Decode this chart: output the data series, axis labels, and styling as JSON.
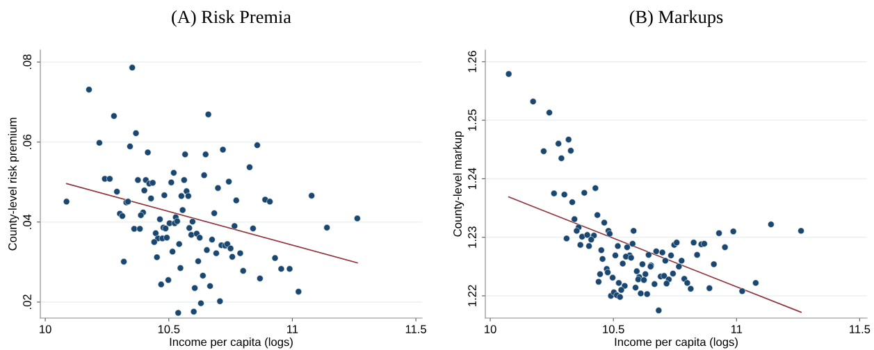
{
  "chart_data": [
    {
      "type": "scatter",
      "title": "(A) Risk Premia",
      "xlabel": "Income per capita (logs)",
      "ylabel": "County-level risk premium",
      "xlim": [
        9.98,
        11.525
      ],
      "ylim": [
        0.016,
        0.083
      ],
      "xticks": [
        10,
        10.5,
        11,
        11.5
      ],
      "yticks": [
        {
          "value": 0.02,
          "label": ".02"
        },
        {
          "value": 0.04,
          "label": ".04"
        },
        {
          "value": 0.06,
          "label": ".06"
        },
        {
          "value": 0.08,
          "label": ".08"
        }
      ],
      "grid": "y",
      "legend": false,
      "series": [
        {
          "marker": "circle",
          "color": "#1a476f",
          "x": [
            10.352,
            10.177,
            10.278,
            10.66,
            10.367,
            10.219,
            10.343,
            10.415,
            10.566,
            10.649,
            10.719,
            10.52,
            10.643,
            10.241,
            10.261,
            10.375,
            10.407,
            10.421,
            10.435,
            10.51,
            10.562,
            10.743,
            10.401,
            10.29,
            10.572,
            10.699,
            10.428,
            10.482,
            10.551,
            10.579,
            10.773,
            10.086,
            10.328,
            10.335,
            10.556,
            10.302,
            10.312,
            10.396,
            10.387,
            10.684,
            10.464,
            10.528,
            10.503,
            10.524,
            10.534,
            10.596,
            10.766,
            10.36,
            10.383,
            10.478,
            10.487,
            10.583,
            10.447,
            10.591,
            10.613,
            10.625,
            10.456,
            10.474,
            10.492,
            10.441,
            10.675,
            10.542,
            10.713,
            10.728,
            10.737,
            10.75,
            10.654,
            10.515,
            10.692,
            10.757,
            10.452,
            10.318,
            10.619,
            10.547,
            10.638,
            10.498,
            10.469,
            10.605,
            10.667,
            10.63,
            10.707,
            10.538,
            10.601,
            10.858,
            10.827,
            10.89,
            10.909,
            11.078,
            10.841,
            11.14,
            11.263,
            10.789,
            10.801,
            10.93,
            10.955,
            10.989,
            10.869,
            11.025
          ],
          "values": [
            0.0786,
            0.0731,
            0.0665,
            0.0669,
            0.0622,
            0.0598,
            0.0589,
            0.0574,
            0.0569,
            0.0569,
            0.0581,
            0.0523,
            0.0517,
            0.0508,
            0.0508,
            0.0505,
            0.0505,
            0.0496,
            0.0498,
            0.0499,
            0.0505,
            0.0501,
            0.0479,
            0.0476,
            0.0477,
            0.0485,
            0.0459,
            0.0467,
            0.0465,
            0.0465,
            0.0454,
            0.0451,
            0.0449,
            0.0451,
            0.043,
            0.0421,
            0.0415,
            0.0424,
            0.0417,
            0.0422,
            0.0407,
            0.0412,
            0.0397,
            0.0397,
            0.0402,
            0.0401,
            0.039,
            0.0383,
            0.0383,
            0.0386,
            0.0384,
            0.0385,
            0.0372,
            0.0368,
            0.0371,
            0.0361,
            0.0359,
            0.0359,
            0.0361,
            0.035,
            0.0356,
            0.0345,
            0.0342,
            0.0341,
            0.0345,
            0.0334,
            0.033,
            0.0326,
            0.0322,
            0.0313,
            0.0312,
            0.0301,
            0.0302,
            0.0285,
            0.0266,
            0.0255,
            0.0244,
            0.0235,
            0.024,
            0.0197,
            0.0202,
            0.0173,
            0.0176,
            0.0592,
            0.0537,
            0.0456,
            0.0451,
            0.0466,
            0.0384,
            0.0386,
            0.0409,
            0.0322,
            0.0278,
            0.031,
            0.0283,
            0.0283,
            0.0259,
            0.0226
          ]
        },
        {
          "type": "line",
          "marker": "none",
          "color": "#90353b",
          "x": [
            10.086,
            11.263
          ],
          "values": [
            0.0496,
            0.0298
          ]
        }
      ]
    },
    {
      "type": "scatter",
      "title": "(B) Markups",
      "xlabel": "Income per capita (logs)",
      "ylabel": "County-level markup",
      "xlim": [
        9.98,
        11.53
      ],
      "ylim": [
        1.2162,
        1.262
      ],
      "xticks": [
        10,
        10.5,
        11,
        11.5
      ],
      "yticks": [
        1.22,
        1.23,
        1.24,
        1.25,
        1.26
      ],
      "grid": "y",
      "legend": false,
      "series": [
        {
          "marker": "circle",
          "color": "#1a476f",
          "x": [
            10.075,
            10.174,
            10.24,
            10.217,
            10.277,
            10.318,
            10.327,
            10.289,
            10.259,
            10.301,
            10.382,
            10.427,
            10.333,
            10.435,
            10.342,
            10.463,
            10.359,
            10.351,
            10.48,
            10.485,
            10.582,
            10.31,
            10.373,
            10.394,
            10.421,
            10.41,
            10.401,
            10.366,
            10.518,
            10.578,
            10.556,
            10.451,
            10.674,
            10.699,
            10.456,
            10.508,
            10.566,
            10.551,
            10.572,
            10.643,
            10.711,
            10.538,
            10.618,
            10.653,
            10.651,
            10.473,
            10.477,
            10.595,
            10.446,
            10.63,
            10.497,
            10.605,
            10.601,
            10.624,
            10.692,
            10.706,
            10.725,
            10.716,
            10.667,
            10.522,
            10.546,
            10.44,
            10.59,
            10.532,
            10.611,
            10.637,
            10.49,
            10.502,
            10.514,
            10.527,
            10.684,
            10.742,
            10.747,
            10.757,
            10.734,
            10.777,
            10.766,
            10.788,
            10.8,
            10.814,
            10.826,
            10.84,
            10.857,
            10.869,
            10.908,
            10.89,
            10.929,
            10.953,
            10.987,
            11.023,
            11.078,
            11.14,
            11.262
          ],
          "values": [
            1.2579,
            1.2532,
            1.2513,
            1.2447,
            1.246,
            1.2467,
            1.2448,
            1.2435,
            1.2375,
            1.2373,
            1.2376,
            1.2384,
            1.236,
            1.2338,
            1.2331,
            1.2325,
            1.2317,
            1.2311,
            1.2311,
            1.2306,
            1.2311,
            1.2298,
            1.2301,
            1.2304,
            1.2303,
            1.2296,
            1.2285,
            1.2287,
            1.2285,
            1.2289,
            1.2283,
            1.2278,
            1.2276,
            1.2274,
            1.2263,
            1.2269,
            1.2269,
            1.2267,
            1.2265,
            1.227,
            1.226,
            1.2255,
            1.2254,
            1.2252,
            1.225,
            1.2246,
            1.224,
            1.2242,
            1.2237,
            1.2237,
            1.2231,
            1.2232,
            1.2228,
            1.2227,
            1.2233,
            1.2234,
            1.2228,
            1.2221,
            1.222,
            1.2222,
            1.2217,
            1.2224,
            1.2214,
            1.221,
            1.2204,
            1.2203,
            1.22,
            1.2206,
            1.2201,
            1.2198,
            1.2175,
            1.2238,
            1.2287,
            1.2291,
            1.2269,
            1.226,
            1.225,
            1.2229,
            1.2222,
            1.2212,
            1.2291,
            1.227,
            1.2288,
            1.2289,
            1.2254,
            1.2213,
            1.2307,
            1.2283,
            1.231,
            1.2208,
            1.2222,
            1.2322,
            1.2311
          ]
        },
        {
          "type": "line",
          "marker": "none",
          "color": "#90353b",
          "x": [
            10.075,
            11.262
          ],
          "values": [
            1.2369,
            1.2172
          ]
        }
      ]
    }
  ]
}
